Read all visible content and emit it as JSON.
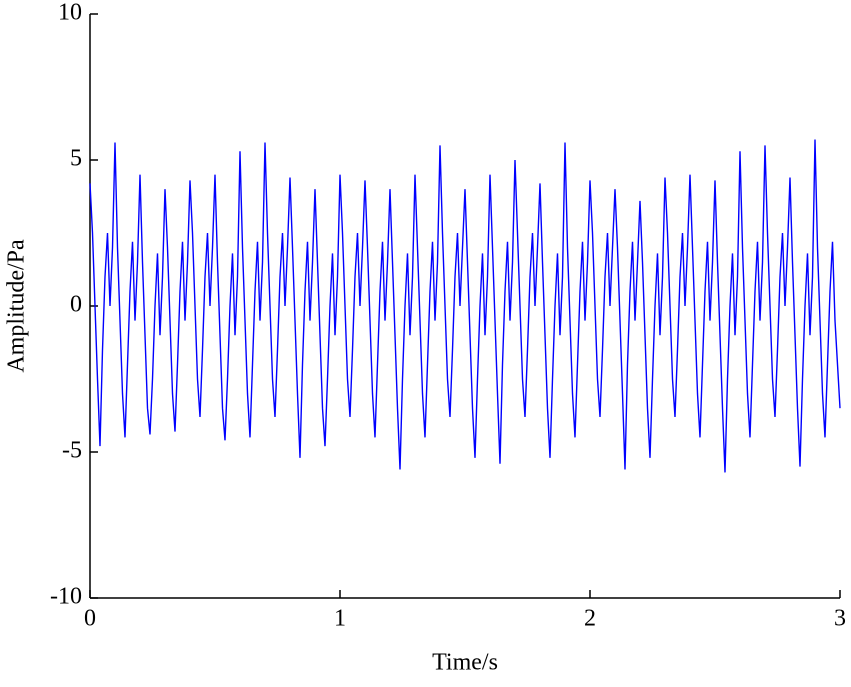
{
  "chart_data": {
    "type": "line",
    "xlabel": "Time/s",
    "ylabel": "Amplitude/Pa",
    "xlim": [
      0,
      3
    ],
    "ylim": [
      -10,
      10
    ],
    "xticks": [
      0,
      1,
      2,
      3
    ],
    "yticks": [
      -10,
      -5,
      0,
      5,
      10
    ],
    "grid": false,
    "x": [
      0,
      0.01,
      0.02,
      0.03,
      0.04,
      0.05,
      0.06,
      0.07,
      0.08,
      0.09,
      0.1,
      0.11,
      0.12,
      0.13,
      0.14,
      0.15,
      0.16,
      0.17,
      0.18,
      0.19,
      0.2,
      0.21,
      0.22,
      0.23,
      0.24,
      0.25,
      0.26,
      0.27,
      0.28,
      0.29,
      0.3,
      0.31,
      0.32,
      0.33,
      0.34,
      0.35,
      0.36,
      0.37,
      0.38,
      0.39,
      0.4,
      0.41,
      0.42,
      0.43,
      0.44,
      0.45,
      0.46,
      0.47,
      0.48,
      0.49,
      0.5,
      0.51,
      0.52,
      0.53,
      0.54,
      0.55,
      0.56,
      0.57,
      0.58,
      0.59,
      0.6,
      0.61,
      0.62,
      0.63,
      0.64,
      0.65,
      0.66,
      0.67,
      0.68,
      0.69,
      0.7,
      0.71,
      0.72,
      0.73,
      0.74,
      0.75,
      0.76,
      0.77,
      0.78,
      0.79,
      0.8,
      0.81,
      0.82,
      0.83,
      0.84,
      0.85,
      0.86,
      0.87,
      0.88,
      0.89,
      0.9,
      0.91,
      0.92,
      0.93,
      0.94,
      0.95,
      0.96,
      0.97,
      0.98,
      0.99,
      1,
      1.01,
      1.02,
      1.03,
      1.04,
      1.05,
      1.06,
      1.07,
      1.08,
      1.09,
      1.1,
      1.11,
      1.12,
      1.13,
      1.14,
      1.15,
      1.16,
      1.17,
      1.18,
      1.19,
      1.2,
      1.21,
      1.22,
      1.23,
      1.24,
      1.25,
      1.26,
      1.27,
      1.28,
      1.29,
      1.3,
      1.31,
      1.32,
      1.33,
      1.34,
      1.35,
      1.36,
      1.37,
      1.38,
      1.39,
      1.4,
      1.41,
      1.42,
      1.43,
      1.44,
      1.45,
      1.46,
      1.47,
      1.48,
      1.49,
      1.5,
      1.51,
      1.52,
      1.53,
      1.54,
      1.55,
      1.56,
      1.57,
      1.58,
      1.59,
      1.6,
      1.61,
      1.62,
      1.63,
      1.64,
      1.65,
      1.66,
      1.67,
      1.68,
      1.69,
      1.7,
      1.71,
      1.72,
      1.73,
      1.74,
      1.75,
      1.76,
      1.77,
      1.78,
      1.79,
      1.8,
      1.81,
      1.82,
      1.83,
      1.84,
      1.85,
      1.86,
      1.87,
      1.88,
      1.89,
      1.9,
      1.91,
      1.92,
      1.93,
      1.94,
      1.95,
      1.96,
      1.97,
      1.98,
      1.99,
      2,
      2.01,
      2.02,
      2.03,
      2.04,
      2.05,
      2.06,
      2.07,
      2.08,
      2.09,
      2.1,
      2.11,
      2.12,
      2.13,
      2.14,
      2.15,
      2.16,
      2.17,
      2.18,
      2.19,
      2.2,
      2.21,
      2.22,
      2.23,
      2.24,
      2.25,
      2.26,
      2.27,
      2.28,
      2.29,
      2.3,
      2.31,
      2.32,
      2.33,
      2.34,
      2.35,
      2.36,
      2.37,
      2.38,
      2.39,
      2.4,
      2.41,
      2.42,
      2.43,
      2.44,
      2.45,
      2.46,
      2.47,
      2.48,
      2.49,
      2.5,
      2.51,
      2.52,
      2.53,
      2.54,
      2.55,
      2.56,
      2.57,
      2.58,
      2.59,
      2.6,
      2.61,
      2.62,
      2.63,
      2.64,
      2.65,
      2.66,
      2.67,
      2.68,
      2.69,
      2.7,
      2.71,
      2.72,
      2.73,
      2.74,
      2.75,
      2.76,
      2.77,
      2.78,
      2.79,
      2.8,
      2.81,
      2.82,
      2.83,
      2.84,
      2.85,
      2.86,
      2.87,
      2.88,
      2.89,
      2.9,
      2.91,
      2.92,
      2.93,
      2.94,
      2.95,
      2.96,
      2.97,
      2.98,
      2.99,
      3
    ],
    "series": [
      {
        "color": "#0000ff",
        "values": [
          4.2,
          2.5,
          0.0,
          -2.5,
          -4.8,
          -1.5,
          1.0,
          2.5,
          0.0,
          2.0,
          5.6,
          2.0,
          -0.5,
          -3.0,
          -4.5,
          -2.0,
          0.5,
          2.2,
          -0.5,
          1.5,
          4.5,
          1.5,
          -1.0,
          -3.5,
          -4.4,
          -2.5,
          0.0,
          1.8,
          -1.0,
          1.0,
          4.0,
          2.0,
          -0.5,
          -3.0,
          -4.3,
          -2.0,
          0.5,
          2.2,
          -0.5,
          1.5,
          4.3,
          2.5,
          0.0,
          -2.5,
          -3.8,
          -1.5,
          1.0,
          2.5,
          0.0,
          2.0,
          4.5,
          1.5,
          -1.0,
          -3.5,
          -4.6,
          -2.5,
          0.0,
          1.8,
          -1.0,
          1.0,
          5.3,
          2.0,
          -0.5,
          -3.0,
          -4.5,
          -2.0,
          0.5,
          2.2,
          -0.5,
          1.5,
          5.6,
          2.5,
          0.0,
          -2.5,
          -3.8,
          -1.5,
          1.0,
          2.5,
          0.0,
          2.0,
          4.4,
          2.0,
          -0.5,
          -3.0,
          -5.2,
          -2.0,
          0.5,
          2.2,
          -0.5,
          1.5,
          4.0,
          1.5,
          -1.0,
          -3.5,
          -4.8,
          -2.5,
          0.0,
          1.8,
          -1.0,
          1.0,
          4.5,
          2.5,
          0.0,
          -2.5,
          -3.8,
          -1.5,
          1.0,
          2.5,
          0.0,
          2.0,
          4.3,
          2.0,
          -0.5,
          -3.0,
          -4.5,
          -2.0,
          0.5,
          2.2,
          -0.5,
          1.5,
          4.0,
          1.5,
          -1.0,
          -3.5,
          -5.6,
          -2.5,
          0.0,
          1.8,
          -1.0,
          1.0,
          4.5,
          2.0,
          -0.5,
          -3.0,
          -4.5,
          -2.0,
          0.5,
          2.2,
          -0.5,
          1.5,
          5.5,
          2.5,
          0.0,
          -2.5,
          -3.8,
          -1.5,
          1.0,
          2.5,
          0.0,
          2.0,
          4.0,
          1.5,
          -1.0,
          -3.5,
          -5.2,
          -2.5,
          0.0,
          1.8,
          -1.0,
          1.0,
          4.5,
          2.0,
          -0.5,
          -3.0,
          -5.4,
          -2.0,
          0.5,
          2.2,
          -0.5,
          1.5,
          5.0,
          2.5,
          0.0,
          -2.5,
          -3.8,
          -1.5,
          1.0,
          2.5,
          0.0,
          2.0,
          4.2,
          1.5,
          -1.0,
          -3.5,
          -5.2,
          -2.5,
          0.0,
          1.8,
          -1.0,
          1.0,
          5.6,
          2.0,
          -0.5,
          -3.0,
          -4.5,
          -2.0,
          0.5,
          2.2,
          -0.5,
          1.5,
          4.3,
          2.5,
          0.0,
          -2.5,
          -3.8,
          -1.5,
          1.0,
          2.5,
          0.0,
          2.0,
          4.0,
          2.0,
          -0.5,
          -3.0,
          -5.6,
          -2.0,
          0.5,
          2.2,
          -0.5,
          1.5,
          3.6,
          1.5,
          -1.0,
          -3.5,
          -5.2,
          -2.5,
          0.0,
          1.8,
          -1.0,
          1.0,
          4.4,
          2.5,
          0.0,
          -2.5,
          -3.8,
          -1.5,
          1.0,
          2.5,
          0.0,
          2.0,
          4.5,
          2.0,
          -0.5,
          -3.0,
          -4.5,
          -2.0,
          0.5,
          2.2,
          -0.5,
          1.5,
          4.3,
          1.5,
          -1.0,
          -3.5,
          -5.7,
          -2.5,
          0.0,
          1.8,
          -1.0,
          1.0,
          5.3,
          2.0,
          -0.5,
          -3.0,
          -4.5,
          -2.0,
          0.5,
          2.2,
          -0.5,
          1.5,
          5.5,
          2.5,
          0.0,
          -2.5,
          -3.8,
          -1.5,
          1.0,
          2.5,
          0.0,
          2.0,
          4.4,
          1.5,
          -1.0,
          -3.5,
          -5.5,
          -2.5,
          0.0,
          1.8,
          -1.0,
          1.0,
          5.7,
          2.0,
          -0.5,
          -3.0,
          -4.5,
          -2.0,
          0.5,
          2.2,
          -0.5,
          -2.0,
          -3.5
        ]
      }
    ]
  }
}
